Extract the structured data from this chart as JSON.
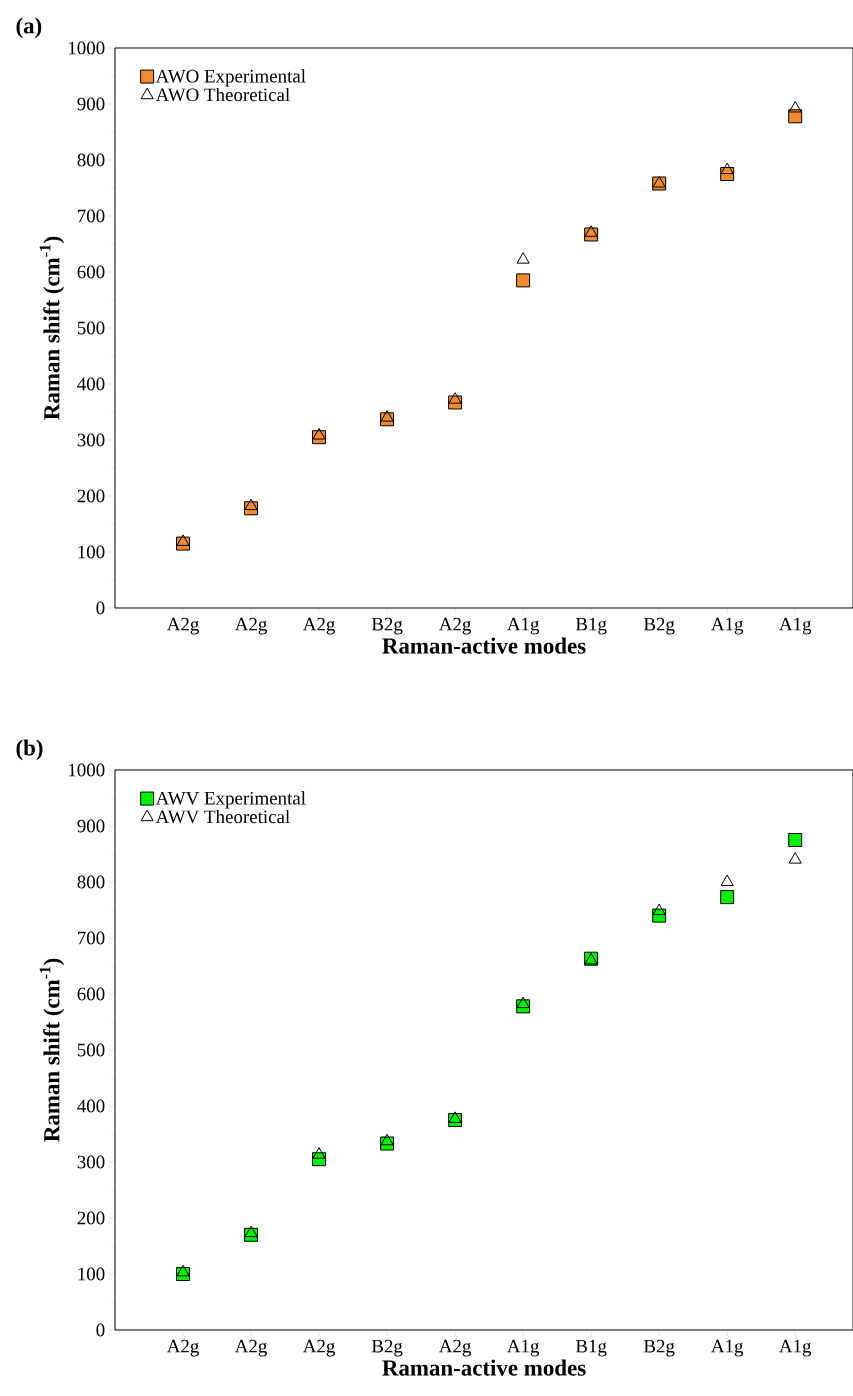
{
  "chart_data": [
    {
      "type": "scatter",
      "title": "(a)",
      "xlabel": "Raman-active modes",
      "ylabel": "Raman shift (cm$^{-1}$)",
      "categories": [
        "A2g",
        "A2g",
        "A2g",
        "B2g",
        "A2g",
        "A1g",
        "B1g",
        "B2g",
        "A1g",
        "A1g"
      ],
      "ylim": [
        0,
        1000
      ],
      "yticks": [
        0,
        100,
        200,
        300,
        400,
        500,
        600,
        700,
        800,
        900,
        1000
      ],
      "legend": "top left",
      "series": [
        {
          "name": "AWO Experimental",
          "color": "#f08a30",
          "marker": "square",
          "values": [
            115,
            178,
            305,
            337,
            367,
            585,
            667,
            758,
            775,
            878
          ]
        },
        {
          "name": "AWO Theoretical",
          "color": "#000000",
          "marker": "triangle",
          "values": [
            118,
            182,
            308,
            340,
            372,
            622,
            670,
            758,
            782,
            892
          ]
        }
      ]
    },
    {
      "type": "scatter",
      "title": "(b)",
      "xlabel": "Raman-active modes",
      "ylabel": "Raman shift (cm$^{-1}$)",
      "categories": [
        "A2g",
        "A2g",
        "A2g",
        "B2g",
        "A2g",
        "A1g",
        "B1g",
        "B2g",
        "A1g",
        "A1g"
      ],
      "ylim": [
        0,
        1000
      ],
      "yticks": [
        0,
        100,
        200,
        300,
        400,
        500,
        600,
        700,
        800,
        900,
        1000
      ],
      "legend": "top left",
      "series": [
        {
          "name": "AWV Experimental",
          "color": "#00f000",
          "marker": "square",
          "values": [
            100,
            170,
            305,
            333,
            375,
            578,
            663,
            740,
            773,
            875
          ]
        },
        {
          "name": "AWV Theoretical",
          "color": "#000000",
          "marker": "triangle",
          "values": [
            103,
            173,
            313,
            337,
            377,
            582,
            660,
            748,
            800,
            840
          ]
        }
      ]
    }
  ]
}
